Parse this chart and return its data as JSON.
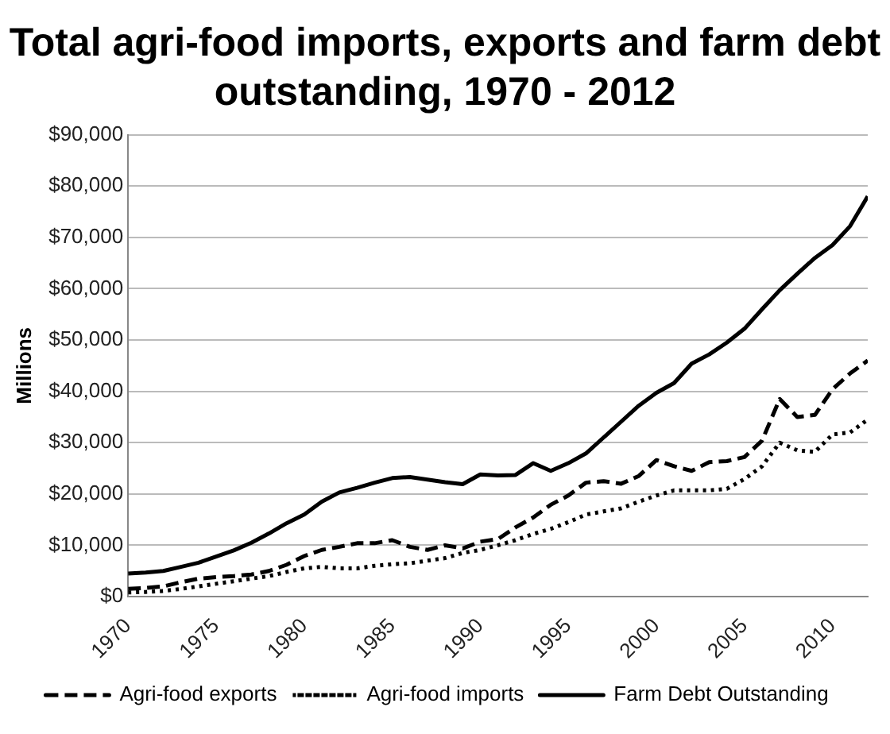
{
  "chart_data": {
    "type": "line",
    "title": "Total agri-food imports, exports and farm debt outstanding, 1970 - 2012",
    "ylabel": "Millions",
    "x": [
      1970,
      1971,
      1972,
      1973,
      1974,
      1975,
      1976,
      1977,
      1978,
      1979,
      1980,
      1981,
      1982,
      1983,
      1984,
      1985,
      1986,
      1987,
      1988,
      1989,
      1990,
      1991,
      1992,
      1993,
      1994,
      1995,
      1996,
      1997,
      1998,
      1999,
      2000,
      2001,
      2002,
      2003,
      2004,
      2005,
      2006,
      2007,
      2008,
      2009,
      2010,
      2011,
      2012
    ],
    "series": [
      {
        "name": "Agri-food exports",
        "color": "#000000",
        "line_style": "dashed",
        "values": [
          1500,
          1700,
          2000,
          2800,
          3500,
          3800,
          4000,
          4300,
          5000,
          6200,
          7900,
          9100,
          9700,
          10400,
          10400,
          11000,
          9700,
          9100,
          10000,
          9400,
          10700,
          11200,
          13500,
          15400,
          17900,
          19700,
          22200,
          22500,
          22000,
          23500,
          26600,
          25400,
          24500,
          26200,
          26400,
          27200,
          30400,
          38500,
          35000,
          35400,
          40400,
          43500,
          46000
        ]
      },
      {
        "name": "Agri-food imports",
        "color": "#000000",
        "line_style": "dotted",
        "values": [
          800,
          900,
          1100,
          1500,
          2000,
          2500,
          3000,
          3500,
          4000,
          4800,
          5500,
          5800,
          5500,
          5500,
          6000,
          6300,
          6500,
          7000,
          7500,
          8500,
          9100,
          10000,
          11000,
          12200,
          13200,
          14500,
          16000,
          16600,
          17200,
          18500,
          19700,
          20700,
          20700,
          20700,
          21000,
          22900,
          25400,
          30000,
          28500,
          28200,
          31600,
          32000,
          34500
        ]
      },
      {
        "name": "Farm Debt Outstanding",
        "color": "#000000",
        "line_style": "solid",
        "values": [
          4500,
          4700,
          5000,
          5800,
          6600,
          7800,
          9000,
          10500,
          12300,
          14300,
          16000,
          18500,
          20300,
          21200,
          22200,
          23100,
          23300,
          22800,
          22300,
          21900,
          23800,
          23600,
          23700,
          26000,
          24500,
          26000,
          27900,
          31000,
          34100,
          37200,
          39700,
          41600,
          45400,
          47200,
          49500,
          52200,
          56000,
          59700,
          62900,
          66000,
          68500,
          72200,
          78000
        ]
      }
    ],
    "xlim": [
      1970,
      2012
    ],
    "xticks": [
      1970,
      1975,
      1980,
      1985,
      1990,
      1995,
      2000,
      2005,
      2010
    ],
    "ylim": [
      0,
      90000
    ],
    "yticks": [
      {
        "value": 0,
        "label": "$0"
      },
      {
        "value": 10000,
        "label": "$10,000"
      },
      {
        "value": 20000,
        "label": "$20,000"
      },
      {
        "value": 30000,
        "label": "$30,000"
      },
      {
        "value": 40000,
        "label": "$40,000"
      },
      {
        "value": 50000,
        "label": "$50,000"
      },
      {
        "value": 60000,
        "label": "$60,000"
      },
      {
        "value": 70000,
        "label": "$70,000"
      },
      {
        "value": 80000,
        "label": "$80,000"
      },
      {
        "value": 90000,
        "label": "$90,000"
      }
    ],
    "grid": "y",
    "legend": "bottom",
    "marker": "none"
  }
}
